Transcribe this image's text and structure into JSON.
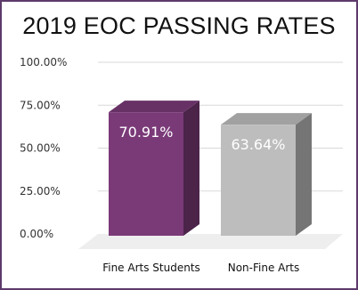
{
  "chart_data": {
    "type": "bar",
    "title": "2019 EOC PASSING RATES",
    "categories": [
      "Fine Arts Students",
      "Non-Fine Arts"
    ],
    "values": [
      70.91,
      63.64
    ],
    "data_labels": [
      "70.91%",
      "63.64%"
    ],
    "ylim": [
      0,
      100
    ],
    "yticks": [
      0,
      25,
      50,
      75,
      100
    ],
    "ytick_labels": [
      "0.00%",
      "25.00%",
      "50.00%",
      "75.00%",
      "100.00%"
    ],
    "colors": [
      "#7a3a78",
      "#bdbdbd"
    ],
    "grid": true,
    "legend": "none",
    "style": "3d"
  }
}
